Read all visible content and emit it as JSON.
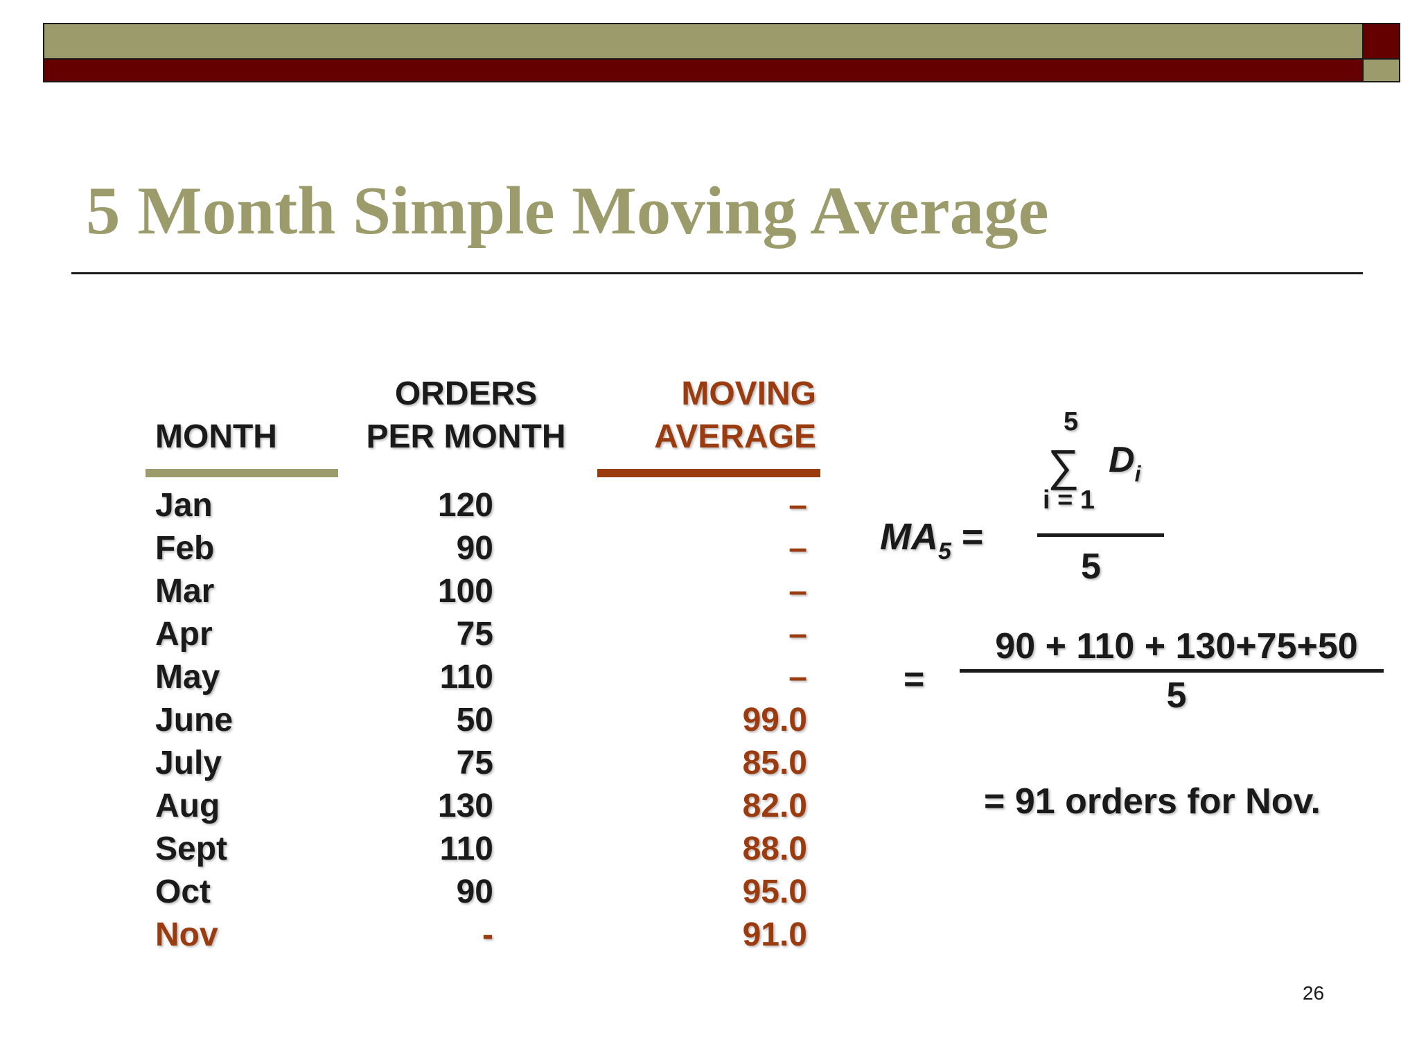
{
  "slide": {
    "title": "5 Month Simple Moving Average",
    "page_number": "26",
    "colors": {
      "olive": "#9b9b6b",
      "dark_red": "#640000",
      "brown": "#9a3b10",
      "text": "#1a1a1a"
    }
  },
  "table": {
    "headers": {
      "month": "MONTH",
      "orders_line1": "ORDERS",
      "orders_line2": "PER MONTH",
      "ma_line1": "MOVING",
      "ma_line2": "AVERAGE"
    },
    "rows": [
      {
        "month": "Jan",
        "orders": "120",
        "ma": "–"
      },
      {
        "month": "Feb",
        "orders": "90",
        "ma": "–"
      },
      {
        "month": "Mar",
        "orders": "100",
        "ma": "–"
      },
      {
        "month": "Apr",
        "orders": "75",
        "ma": "–"
      },
      {
        "month": "May",
        "orders": "110",
        "ma": "–"
      },
      {
        "month": "June",
        "orders": "50",
        "ma": "99.0"
      },
      {
        "month": "July",
        "orders": "75",
        "ma": "85.0"
      },
      {
        "month": "Aug",
        "orders": "130",
        "ma": "82.0"
      },
      {
        "month": "Sept",
        "orders": "110",
        "ma": "88.0"
      },
      {
        "month": "Oct",
        "orders": "90",
        "ma": "95.0"
      },
      {
        "month": "Nov",
        "orders": "-",
        "ma": "91.0"
      }
    ]
  },
  "formula": {
    "ma_symbol": "MA",
    "ma_subscript": "5",
    "equals": "=",
    "sum_upper": "5",
    "sum_symbol": "∑",
    "sum_lower": "i = 1",
    "sum_variable": "D",
    "sum_variable_sub": "i",
    "denominator": "5",
    "second_equals": "=",
    "numerator2": "90 + 110 + 130+75+50",
    "denominator2": "5",
    "result": "= 91 orders for Nov."
  }
}
